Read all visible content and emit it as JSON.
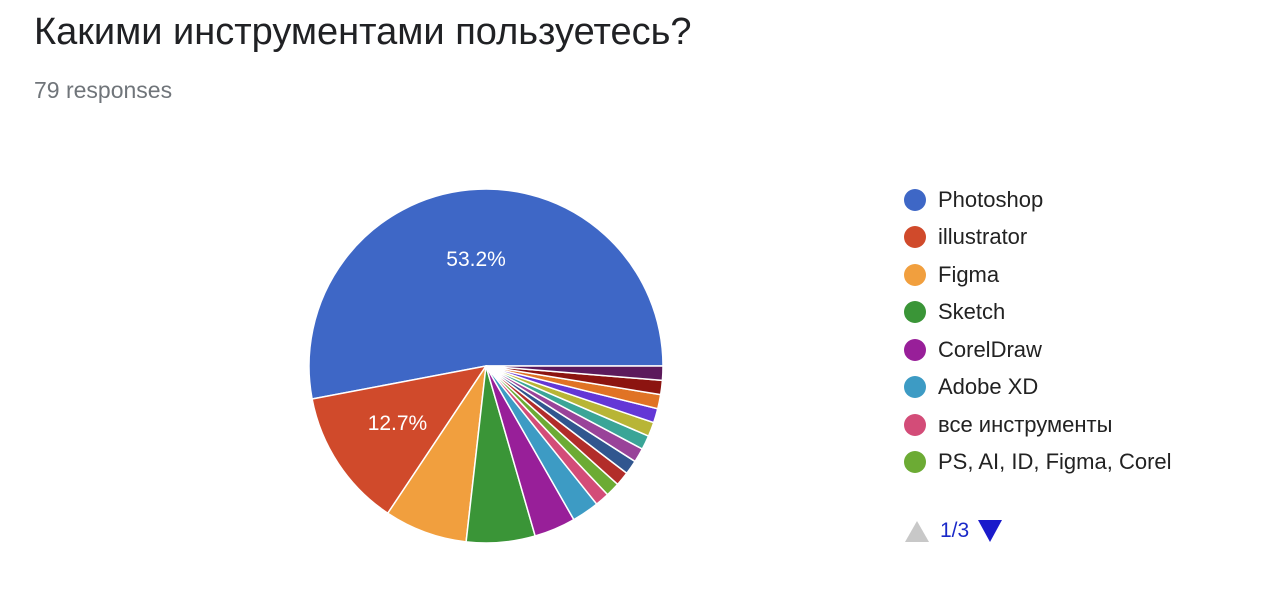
{
  "header": {
    "title": "Какими инструментами пользуетесь?",
    "responses": "79 responses"
  },
  "chart_data": {
    "type": "pie",
    "start": "3 o'clock, counter-clockwise",
    "slices": [
      {
        "label": "Photoshop",
        "value": 53.2,
        "color": "#3e67c6",
        "data_label": "53.2%"
      },
      {
        "label": "illustrator",
        "value": 12.7,
        "color": "#d04a2b",
        "data_label": "12.7%"
      },
      {
        "label": "Figma",
        "value": 7.6,
        "color": "#f19f3e",
        "data_label": ""
      },
      {
        "label": "Sketch",
        "value": 6.3,
        "color": "#3a9537",
        "data_label": ""
      },
      {
        "label": "CorelDraw",
        "value": 3.8,
        "color": "#981f99",
        "data_label": ""
      },
      {
        "label": "Adobe XD",
        "value": 2.5,
        "color": "#3d9bc4",
        "data_label": ""
      },
      {
        "label": "все инструменты",
        "value": 1.3,
        "color": "#d34c78",
        "data_label": ""
      },
      {
        "label": "PS, AI, ID, Figma, Corel",
        "value": 1.3,
        "color": "#6cab34",
        "data_label": ""
      },
      {
        "label": "",
        "value": 1.3,
        "color": "#b22d2a",
        "data_label": ""
      },
      {
        "label": "",
        "value": 1.3,
        "color": "#31568f",
        "data_label": ""
      },
      {
        "label": "",
        "value": 1.3,
        "color": "#994399",
        "data_label": ""
      },
      {
        "label": "",
        "value": 1.3,
        "color": "#3aa597",
        "data_label": ""
      },
      {
        "label": "",
        "value": 1.3,
        "color": "#b8b536",
        "data_label": ""
      },
      {
        "label": "",
        "value": 1.3,
        "color": "#6337d6",
        "data_label": ""
      },
      {
        "label": "",
        "value": 1.3,
        "color": "#e07325",
        "data_label": ""
      },
      {
        "label": "",
        "value": 1.3,
        "color": "#8c1410",
        "data_label": ""
      },
      {
        "label": "",
        "value": 1.3,
        "color": "#5c1a5c",
        "data_label": ""
      }
    ],
    "legend_position": "right",
    "legend_entries": [
      "Photoshop",
      "illustrator",
      "Figma",
      "Sketch",
      "CorelDraw",
      "Adobe XD",
      "все инструменты",
      "PS, AI, ID, Figma, Corel"
    ]
  },
  "pager": {
    "text": "1/3",
    "up_icon": "triangle-up-icon",
    "down_icon": "triangle-down-icon",
    "up_color": "#c8c8c8",
    "down_color": "#1a1acb"
  }
}
